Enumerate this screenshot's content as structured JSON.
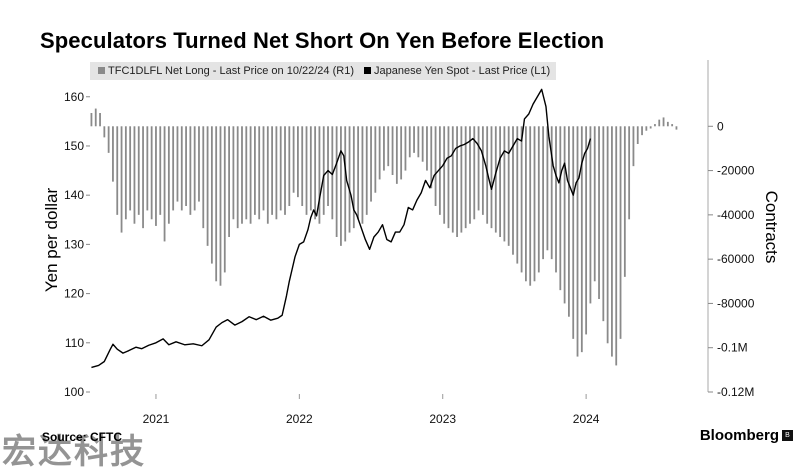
{
  "title": "Speculators Turned Net Short On Yen Before Election",
  "legend": {
    "bars_label": "TFC1DLFL Net Long - Last Price on 10/22/24 (R1)",
    "line_label": "Japanese Yen Spot - Last Price (L1)",
    "bars_color": "#8a8a8a",
    "line_color": "#000000"
  },
  "source": "Source: CFTC",
  "brand": "Bloomberg",
  "brand_icon": "bloomberg-mark-icon",
  "watermark": "宏达科技",
  "chart_data": {
    "type": "bar+line",
    "left_axis": {
      "label": "Yen per dollar",
      "ylim": [
        100,
        163
      ],
      "ticks": [
        100,
        110,
        120,
        130,
        140,
        150,
        160
      ]
    },
    "right_axis": {
      "label": "Contracts",
      "ylim": [
        -120000,
        20000
      ],
      "ticks": [
        0,
        -20000,
        -40000,
        -60000,
        -80000,
        -100000,
        -120000
      ],
      "tick_labels": [
        "0",
        "-20000",
        "-40000",
        "-60000",
        "-80000",
        "-0.1M",
        "-0.12M"
      ]
    },
    "x_axis": {
      "range": [
        2020.54,
        2024.85
      ],
      "tick_labels": [
        "2021",
        "2022",
        "2023",
        "2024"
      ],
      "tick_positions": [
        2021.0,
        2022.0,
        2023.0,
        2024.0
      ],
      "gridlines": false
    },
    "series": [
      {
        "name": "TFC1DLFL Net Long - Last Price on 10/22/24 (R1)",
        "type": "bar",
        "axis": "right",
        "points": [
          [
            2020.55,
            6000
          ],
          [
            2020.58,
            8000
          ],
          [
            2020.61,
            6000
          ],
          [
            2020.64,
            -5000
          ],
          [
            2020.67,
            -12000
          ],
          [
            2020.7,
            -25000
          ],
          [
            2020.73,
            -40000
          ],
          [
            2020.76,
            -48000
          ],
          [
            2020.79,
            -42000
          ],
          [
            2020.82,
            -38000
          ],
          [
            2020.85,
            -44000
          ],
          [
            2020.88,
            -40000
          ],
          [
            2020.91,
            -46000
          ],
          [
            2020.94,
            -38000
          ],
          [
            2020.97,
            -42000
          ],
          [
            2021.0,
            -45000
          ],
          [
            2021.03,
            -40000
          ],
          [
            2021.06,
            -52000
          ],
          [
            2021.09,
            -44000
          ],
          [
            2021.12,
            -38000
          ],
          [
            2021.15,
            -34000
          ],
          [
            2021.18,
            -38000
          ],
          [
            2021.21,
            -36000
          ],
          [
            2021.24,
            -40000
          ],
          [
            2021.27,
            -38000
          ],
          [
            2021.3,
            -34000
          ],
          [
            2021.33,
            -46000
          ],
          [
            2021.36,
            -54000
          ],
          [
            2021.39,
            -62000
          ],
          [
            2021.42,
            -70000
          ],
          [
            2021.45,
            -72000
          ],
          [
            2021.48,
            -66000
          ],
          [
            2021.51,
            -50000
          ],
          [
            2021.54,
            -42000
          ],
          [
            2021.57,
            -46000
          ],
          [
            2021.6,
            -44000
          ],
          [
            2021.63,
            -42000
          ],
          [
            2021.66,
            -44000
          ],
          [
            2021.69,
            -40000
          ],
          [
            2021.72,
            -42000
          ],
          [
            2021.75,
            -38000
          ],
          [
            2021.78,
            -44000
          ],
          [
            2021.81,
            -40000
          ],
          [
            2021.84,
            -42000
          ],
          [
            2021.87,
            -38000
          ],
          [
            2021.9,
            -40000
          ],
          [
            2021.93,
            -36000
          ],
          [
            2021.96,
            -30000
          ],
          [
            2021.99,
            -32000
          ],
          [
            2022.02,
            -36000
          ],
          [
            2022.05,
            -40000
          ],
          [
            2022.08,
            -38000
          ],
          [
            2022.11,
            -42000
          ],
          [
            2022.14,
            -44000
          ],
          [
            2022.17,
            -40000
          ],
          [
            2022.2,
            -36000
          ],
          [
            2022.23,
            -42000
          ],
          [
            2022.26,
            -50000
          ],
          [
            2022.29,
            -54000
          ],
          [
            2022.32,
            -52000
          ],
          [
            2022.35,
            -48000
          ],
          [
            2022.38,
            -46000
          ],
          [
            2022.41,
            -42000
          ],
          [
            2022.44,
            -44000
          ],
          [
            2022.47,
            -40000
          ],
          [
            2022.5,
            -34000
          ],
          [
            2022.53,
            -30000
          ],
          [
            2022.56,
            -24000
          ],
          [
            2022.59,
            -20000
          ],
          [
            2022.62,
            -18000
          ],
          [
            2022.65,
            -22000
          ],
          [
            2022.68,
            -26000
          ],
          [
            2022.71,
            -24000
          ],
          [
            2022.74,
            -20000
          ],
          [
            2022.77,
            -14000
          ],
          [
            2022.8,
            -12000
          ],
          [
            2022.83,
            -14000
          ],
          [
            2022.86,
            -16000
          ],
          [
            2022.89,
            -20000
          ],
          [
            2022.92,
            -28000
          ],
          [
            2022.95,
            -36000
          ],
          [
            2022.98,
            -40000
          ],
          [
            2023.01,
            -44000
          ],
          [
            2023.04,
            -46000
          ],
          [
            2023.07,
            -48000
          ],
          [
            2023.1,
            -50000
          ],
          [
            2023.13,
            -48000
          ],
          [
            2023.16,
            -46000
          ],
          [
            2023.19,
            -44000
          ],
          [
            2023.22,
            -42000
          ],
          [
            2023.25,
            -38000
          ],
          [
            2023.28,
            -40000
          ],
          [
            2023.31,
            -44000
          ],
          [
            2023.34,
            -46000
          ],
          [
            2023.37,
            -48000
          ],
          [
            2023.4,
            -50000
          ],
          [
            2023.43,
            -52000
          ],
          [
            2023.46,
            -54000
          ],
          [
            2023.49,
            -58000
          ],
          [
            2023.52,
            -62000
          ],
          [
            2023.55,
            -66000
          ],
          [
            2023.58,
            -70000
          ],
          [
            2023.61,
            -72000
          ],
          [
            2023.64,
            -70000
          ],
          [
            2023.67,
            -66000
          ],
          [
            2023.7,
            -60000
          ],
          [
            2023.73,
            -56000
          ],
          [
            2023.76,
            -60000
          ],
          [
            2023.79,
            -66000
          ],
          [
            2023.82,
            -74000
          ],
          [
            2023.85,
            -80000
          ],
          [
            2023.88,
            -86000
          ],
          [
            2023.91,
            -96000
          ],
          [
            2023.94,
            -104000
          ],
          [
            2023.97,
            -102000
          ],
          [
            2024.0,
            -94000
          ],
          [
            2024.03,
            -80000
          ],
          [
            2024.06,
            -70000
          ],
          [
            2024.09,
            -78000
          ],
          [
            2024.12,
            -88000
          ],
          [
            2024.15,
            -98000
          ],
          [
            2024.18,
            -104000
          ],
          [
            2024.21,
            -108000
          ],
          [
            2024.24,
            -96000
          ],
          [
            2024.27,
            -68000
          ],
          [
            2024.3,
            -42000
          ],
          [
            2024.33,
            -18000
          ],
          [
            2024.36,
            -8000
          ],
          [
            2024.39,
            -4000
          ],
          [
            2024.42,
            -2000
          ],
          [
            2024.45,
            -1000
          ],
          [
            2024.48,
            1000
          ],
          [
            2024.51,
            3000
          ],
          [
            2024.54,
            4000
          ],
          [
            2024.57,
            2000
          ],
          [
            2024.6,
            1000
          ],
          [
            2024.63,
            -1500
          ]
        ]
      },
      {
        "name": "Japanese Yen Spot - Last Price (L1)",
        "type": "line",
        "axis": "left",
        "points": [
          [
            2020.55,
            105.0
          ],
          [
            2020.6,
            105.4
          ],
          [
            2020.64,
            106.2
          ],
          [
            2020.68,
            108.6
          ],
          [
            2020.7,
            109.7
          ],
          [
            2020.73,
            108.7
          ],
          [
            2020.77,
            107.9
          ],
          [
            2020.81,
            108.4
          ],
          [
            2020.86,
            109.1
          ],
          [
            2020.9,
            108.8
          ],
          [
            2020.95,
            109.5
          ],
          [
            2021.0,
            110.0
          ],
          [
            2021.05,
            110.8
          ],
          [
            2021.09,
            109.6
          ],
          [
            2021.14,
            110.2
          ],
          [
            2021.2,
            109.6
          ],
          [
            2021.26,
            109.8
          ],
          [
            2021.32,
            109.4
          ],
          [
            2021.37,
            110.6
          ],
          [
            2021.42,
            113.2
          ],
          [
            2021.46,
            114.1
          ],
          [
            2021.5,
            114.7
          ],
          [
            2021.55,
            113.6
          ],
          [
            2021.6,
            114.3
          ],
          [
            2021.65,
            115.3
          ],
          [
            2021.7,
            114.7
          ],
          [
            2021.75,
            115.4
          ],
          [
            2021.8,
            114.6
          ],
          [
            2021.85,
            115.0
          ],
          [
            2021.88,
            115.6
          ],
          [
            2021.91,
            119.5
          ],
          [
            2021.93,
            122.5
          ],
          [
            2021.95,
            125.0
          ],
          [
            2021.97,
            127.5
          ],
          [
            2022.0,
            130.0
          ],
          [
            2022.03,
            130.5
          ],
          [
            2022.06,
            133.0
          ],
          [
            2022.08,
            135.5
          ],
          [
            2022.1,
            137.0
          ],
          [
            2022.12,
            135.8
          ],
          [
            2022.14,
            139.2
          ],
          [
            2022.17,
            144.0
          ],
          [
            2022.2,
            145.0
          ],
          [
            2022.23,
            144.2
          ],
          [
            2022.26,
            146.5
          ],
          [
            2022.29,
            149.0
          ],
          [
            2022.31,
            148.0
          ],
          [
            2022.33,
            143.0
          ],
          [
            2022.36,
            140.0
          ],
          [
            2022.38,
            137.0
          ],
          [
            2022.4,
            136.0
          ],
          [
            2022.43,
            133.5
          ],
          [
            2022.46,
            131.0
          ],
          [
            2022.49,
            129.0
          ],
          [
            2022.52,
            131.5
          ],
          [
            2022.55,
            132.5
          ],
          [
            2022.58,
            134.0
          ],
          [
            2022.61,
            131.0
          ],
          [
            2022.64,
            130.5
          ],
          [
            2022.67,
            132.5
          ],
          [
            2022.7,
            132.5
          ],
          [
            2022.73,
            134.0
          ],
          [
            2022.76,
            137.5
          ],
          [
            2022.79,
            137.0
          ],
          [
            2022.82,
            139.0
          ],
          [
            2022.85,
            140.5
          ],
          [
            2022.88,
            143.0
          ],
          [
            2022.91,
            141.5
          ],
          [
            2022.94,
            144.0
          ],
          [
            2022.97,
            145.0
          ],
          [
            2023.0,
            146.0
          ],
          [
            2023.03,
            147.5
          ],
          [
            2023.06,
            148.0
          ],
          [
            2023.09,
            149.5
          ],
          [
            2023.12,
            150.0
          ],
          [
            2023.15,
            150.3
          ],
          [
            2023.18,
            150.8
          ],
          [
            2023.21,
            151.5
          ],
          [
            2023.24,
            150.5
          ],
          [
            2023.27,
            149.0
          ],
          [
            2023.3,
            146.0
          ],
          [
            2023.32,
            143.5
          ],
          [
            2023.34,
            141.2
          ],
          [
            2023.37,
            144.5
          ],
          [
            2023.4,
            147.5
          ],
          [
            2023.43,
            149.0
          ],
          [
            2023.46,
            148.5
          ],
          [
            2023.49,
            150.0
          ],
          [
            2023.52,
            151.5
          ],
          [
            2023.55,
            151.0
          ],
          [
            2023.57,
            155.5
          ],
          [
            2023.6,
            156.5
          ],
          [
            2023.63,
            158.5
          ],
          [
            2023.66,
            160.0
          ],
          [
            2023.69,
            161.5
          ],
          [
            2023.72,
            158.0
          ],
          [
            2023.74,
            152.0
          ],
          [
            2023.77,
            146.0
          ],
          [
            2023.79,
            144.0
          ],
          [
            2023.81,
            142.5
          ],
          [
            2023.83,
            145.0
          ],
          [
            2023.85,
            146.5
          ],
          [
            2023.87,
            143.0
          ],
          [
            2023.89,
            141.5
          ],
          [
            2023.91,
            140.0
          ],
          [
            2023.93,
            142.5
          ],
          [
            2023.95,
            143.5
          ],
          [
            2023.97,
            146.5
          ],
          [
            2023.99,
            148.5
          ],
          [
            2024.01,
            149.5
          ],
          [
            2024.03,
            151.5
          ]
        ]
      }
    ]
  }
}
